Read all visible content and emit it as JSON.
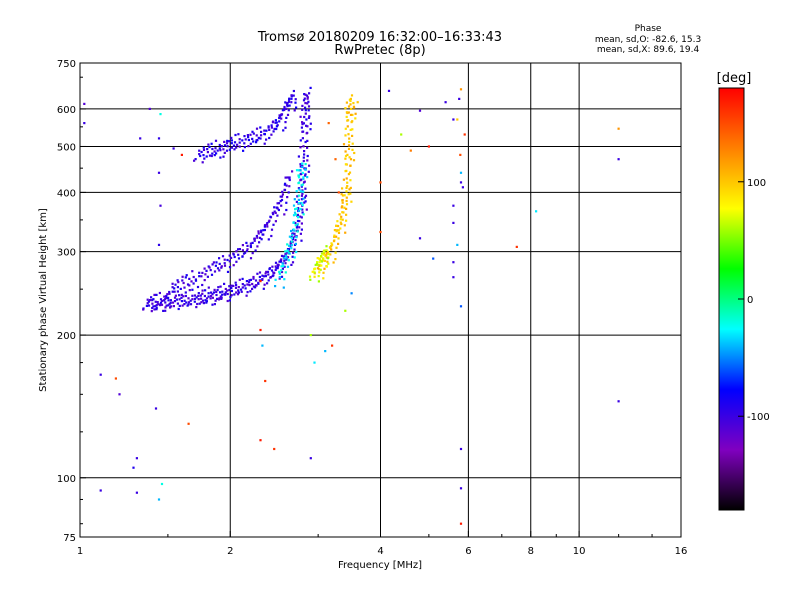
{
  "chart_data": {
    "type": "scatter",
    "title": "Tromsø 20180209 16:32:00–16:33:43",
    "subtitle": "RwPretec (8p)",
    "xlabel": "Frequency [MHz]",
    "ylabel": "Stationary phase Virtual Height [km]",
    "x_scale": "log",
    "y_scale": "log",
    "xlim": [
      1,
      16
    ],
    "ylim": [
      75,
      750
    ],
    "x_ticks": [
      1,
      2,
      4,
      6,
      8,
      10,
      16
    ],
    "y_ticks": [
      75,
      100,
      200,
      300,
      400,
      500,
      600,
      750
    ],
    "x_gridlines": [
      2,
      4,
      6,
      8,
      10
    ],
    "y_gridlines": [
      100,
      200,
      300,
      400,
      500,
      600
    ],
    "phase_stats": {
      "heading": "Phase",
      "line_o": "mean, sd,O: -82.6, 15.3",
      "line_x": "mean, sd,X: 89.6, 19.4"
    },
    "colorbar": {
      "label": "[deg]",
      "range": [
        -180,
        180
      ],
      "ticks": [
        100,
        0,
        -100
      ],
      "colors": [
        "#ff0000",
        "#ff8000",
        "#ffff00",
        "#00ff00",
        "#00ffff",
        "#0000ff",
        "#8000c0",
        "#000000"
      ]
    },
    "series": [
      {
        "kind": "o-trace-outer",
        "phase": -100,
        "points": [
          [
            1.36,
            232
          ],
          [
            1.4,
            233
          ],
          [
            1.44,
            232
          ],
          [
            1.48,
            234
          ],
          [
            1.52,
            234
          ],
          [
            1.58,
            235
          ],
          [
            1.64,
            236
          ],
          [
            1.7,
            237
          ],
          [
            1.76,
            238
          ],
          [
            1.82,
            240
          ],
          [
            1.88,
            242
          ],
          [
            1.94,
            244
          ],
          [
            2.0,
            246
          ],
          [
            2.08,
            249
          ],
          [
            2.16,
            252
          ],
          [
            2.24,
            256
          ],
          [
            2.32,
            261
          ],
          [
            2.4,
            267
          ],
          [
            2.48,
            274
          ],
          [
            2.54,
            282
          ],
          [
            2.6,
            292
          ],
          [
            2.65,
            304
          ],
          [
            2.7,
            320
          ],
          [
            2.74,
            340
          ],
          [
            2.77,
            365
          ],
          [
            2.79,
            395
          ],
          [
            2.8,
            430
          ],
          [
            2.81,
            470
          ],
          [
            2.82,
            520
          ],
          [
            2.83,
            570
          ],
          [
            2.84,
            610
          ],
          [
            2.85,
            640
          ]
        ]
      },
      {
        "kind": "o-trace-inner",
        "phase": -100,
        "points": [
          [
            1.52,
            250
          ],
          [
            1.6,
            255
          ],
          [
            1.7,
            262
          ],
          [
            1.8,
            270
          ],
          [
            1.9,
            278
          ],
          [
            2.0,
            286
          ],
          [
            2.1,
            295
          ],
          [
            2.2,
            305
          ],
          [
            2.28,
            318
          ],
          [
            2.36,
            334
          ],
          [
            2.44,
            352
          ],
          [
            2.52,
            375
          ],
          [
            2.58,
            400
          ],
          [
            2.63,
            430
          ]
        ]
      },
      {
        "kind": "o-trace-upper-branch",
        "phase": -95,
        "points": [
          [
            1.72,
            478
          ],
          [
            1.8,
            484
          ],
          [
            1.88,
            490
          ],
          [
            1.96,
            497
          ],
          [
            2.04,
            503
          ],
          [
            2.14,
            510
          ],
          [
            2.24,
            518
          ],
          [
            2.34,
            528
          ],
          [
            2.44,
            544
          ],
          [
            2.52,
            565
          ],
          [
            2.58,
            590
          ],
          [
            2.64,
            620
          ],
          [
            2.68,
            640
          ]
        ]
      },
      {
        "kind": "o-trace-edge",
        "phase": -30,
        "points": [
          [
            2.5,
            260
          ],
          [
            2.58,
            282
          ],
          [
            2.64,
            305
          ],
          [
            2.69,
            330
          ],
          [
            2.73,
            360
          ],
          [
            2.76,
            395
          ],
          [
            2.78,
            430
          ],
          [
            2.79,
            460
          ]
        ]
      },
      {
        "kind": "x-trace",
        "phase": 100,
        "points": [
          [
            3.0,
            272
          ],
          [
            3.08,
            283
          ],
          [
            3.16,
            296
          ],
          [
            3.24,
            312
          ],
          [
            3.3,
            332
          ],
          [
            3.36,
            355
          ],
          [
            3.4,
            380
          ],
          [
            3.43,
            410
          ],
          [
            3.45,
            450
          ],
          [
            3.46,
            500
          ],
          [
            3.47,
            550
          ],
          [
            3.48,
            600
          ],
          [
            3.49,
            630
          ]
        ]
      },
      {
        "kind": "x-trace-lower",
        "phase": 70,
        "points": [
          [
            2.94,
            268
          ],
          [
            3.0,
            278
          ],
          [
            3.06,
            290
          ],
          [
            3.12,
            302
          ]
        ]
      },
      {
        "kind": "scattered-echoes",
        "points": [
          [
            1.02,
            615,
            -110
          ],
          [
            1.02,
            560,
            -100
          ],
          [
            1.32,
            520,
            -100
          ],
          [
            1.38,
            600,
            -110
          ],
          [
            1.44,
            520,
            -95
          ],
          [
            1.45,
            585,
            -20
          ],
          [
            1.44,
            440,
            -100
          ],
          [
            1.45,
            375,
            -105
          ],
          [
            1.44,
            310,
            -95
          ],
          [
            1.1,
            165,
            -100
          ],
          [
            1.2,
            150,
            -110
          ],
          [
            1.18,
            162,
            150
          ],
          [
            1.42,
            140,
            -100
          ],
          [
            1.65,
            130,
            150
          ],
          [
            1.28,
            105,
            -90
          ],
          [
            1.3,
            110,
            -100
          ],
          [
            1.1,
            94,
            -100
          ],
          [
            1.3,
            93,
            -100
          ],
          [
            1.44,
            90,
            -40
          ],
          [
            1.46,
            97,
            -20
          ],
          [
            1.54,
            495,
            -100
          ],
          [
            1.6,
            480,
            170
          ],
          [
            2.3,
            260,
            170
          ],
          [
            2.3,
            205,
            170
          ],
          [
            2.32,
            190,
            -40
          ],
          [
            2.35,
            160,
            160
          ],
          [
            2.3,
            120,
            170
          ],
          [
            2.45,
            115,
            160
          ],
          [
            2.9,
            200,
            60
          ],
          [
            3.1,
            185,
            -40
          ],
          [
            3.2,
            190,
            160
          ],
          [
            2.95,
            175,
            -30
          ],
          [
            2.9,
            110,
            -100
          ],
          [
            3.4,
            225,
            60
          ],
          [
            3.5,
            245,
            -50
          ],
          [
            3.3,
            400,
            150
          ],
          [
            3.25,
            470,
            140
          ],
          [
            3.15,
            560,
            140
          ],
          [
            3.6,
            620,
            100
          ],
          [
            4.0,
            420,
            150
          ],
          [
            4.0,
            330,
            150
          ],
          [
            4.16,
            655,
            -100
          ],
          [
            4.4,
            530,
            60
          ],
          [
            4.6,
            490,
            130
          ],
          [
            4.8,
            595,
            -110
          ],
          [
            5.0,
            500,
            170
          ],
          [
            5.4,
            620,
            -100
          ],
          [
            5.6,
            570,
            -100
          ],
          [
            4.8,
            320,
            -100
          ],
          [
            5.1,
            290,
            -60
          ],
          [
            5.6,
            285,
            -100
          ],
          [
            5.6,
            265,
            -100
          ],
          [
            5.6,
            345,
            -100
          ],
          [
            5.6,
            375,
            -100
          ],
          [
            5.7,
            310,
            -40
          ],
          [
            5.7,
            570,
            100
          ],
          [
            5.75,
            630,
            -100
          ],
          [
            5.8,
            660,
            120
          ],
          [
            5.78,
            480,
            150
          ],
          [
            5.8,
            440,
            -40
          ],
          [
            5.8,
            420,
            -100
          ],
          [
            5.85,
            410,
            -100
          ],
          [
            5.9,
            530,
            160
          ],
          [
            5.8,
            230,
            -60
          ],
          [
            5.8,
            115,
            -100
          ],
          [
            5.8,
            95,
            -100
          ],
          [
            5.8,
            80,
            170
          ],
          [
            7.5,
            307,
            160
          ],
          [
            8.2,
            365,
            -30
          ],
          [
            12.0,
            545,
            120
          ],
          [
            12.0,
            470,
            -100
          ],
          [
            12.0,
            145,
            -100
          ]
        ]
      }
    ]
  }
}
